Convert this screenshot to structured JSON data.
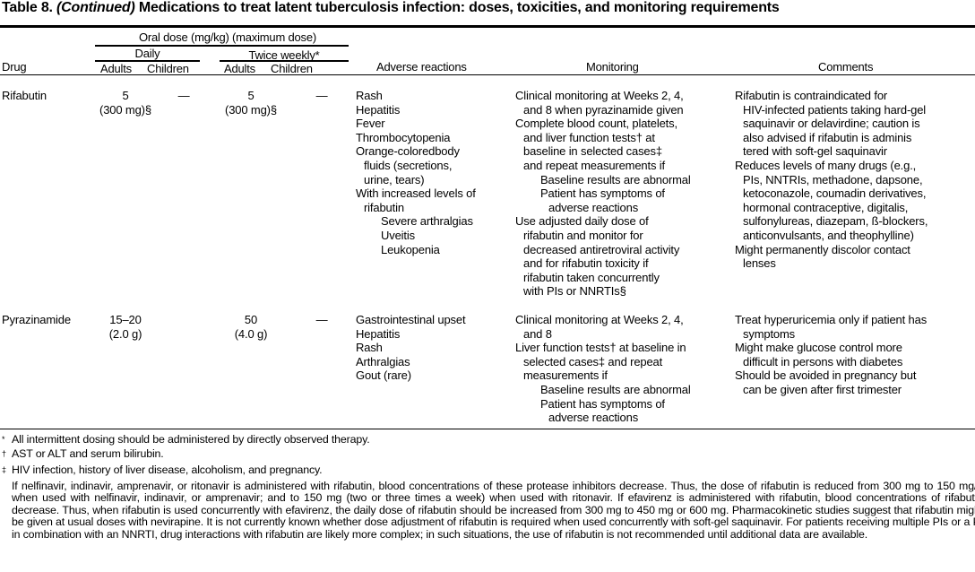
{
  "title": {
    "label": "Table 8.",
    "continued": "(Continued)",
    "text": "Medications to treat latent tuberculosis infection: doses, toxicities, and monitoring requirements"
  },
  "header": {
    "oral_dose": "Oral dose (mg/kg) (maximum dose)",
    "daily": "Daily",
    "twice_weekly": "Twice weekly*",
    "drug": "Drug",
    "adults": "Adults",
    "children": "Children",
    "adverse": "Adverse reactions",
    "monitoring": "Monitoring",
    "comments": "Comments"
  },
  "rows": [
    {
      "drug": "Rifabutin",
      "daily_adults": [
        "5",
        "(300 mg)§"
      ],
      "daily_children": "—",
      "tw_adults": [
        "5",
        "(300 mg)§"
      ],
      "tw_children": "—",
      "adverse": [
        [
          "Rash",
          0
        ],
        [
          "Hepatitis",
          0
        ],
        [
          "Fever",
          0
        ],
        [
          "Thrombocytopenia",
          0
        ],
        [
          "Orange-coloredbody",
          0
        ],
        [
          "fluids (secretions,",
          1
        ],
        [
          "urine, tears)",
          1
        ],
        [
          "With increased levels of",
          0
        ],
        [
          "rifabutin",
          1
        ],
        [
          "Severe arthralgias",
          2
        ],
        [
          "Uveitis",
          2
        ],
        [
          "Leukopenia",
          2
        ]
      ],
      "monitoring": [
        [
          "Clinical monitoring at Weeks 2, 4,",
          0
        ],
        [
          "and 8 when pyrazinamide given",
          1
        ],
        [
          "Complete blood count, platelets,",
          0
        ],
        [
          "and liver function tests† at",
          1
        ],
        [
          "baseline in selected cases‡",
          1
        ],
        [
          "and repeat measurements if",
          1
        ],
        [
          "Baseline results are abnormal",
          2
        ],
        [
          "Patient has symptoms of",
          2
        ],
        [
          "adverse reactions",
          3
        ],
        [
          "Use adjusted daily dose of",
          0
        ],
        [
          "rifabutin and monitor for",
          1
        ],
        [
          "decreased antiretroviral activity",
          1
        ],
        [
          "and for rifabutin toxicity if",
          1
        ],
        [
          "rifabutin taken concurrently",
          1
        ],
        [
          "with PIs or NNRTIs§",
          1
        ]
      ],
      "comments": [
        [
          "Rifabutin is contraindicated for",
          0
        ],
        [
          "HIV-infected patients taking hard-gel",
          1
        ],
        [
          "saquinavir or delavirdine; caution is",
          1
        ],
        [
          "also advised if rifabutin is adminis",
          1
        ],
        [
          "tered with soft-gel saquinavir",
          1
        ],
        [
          "Reduces levels of many drugs (e.g.,",
          0
        ],
        [
          "PIs, NNTRIs, methadone, dapsone,",
          1
        ],
        [
          "ketoconazole, coumadin derivatives,",
          1
        ],
        [
          "hormonal contraceptive, digitalis,",
          1
        ],
        [
          "sulfonylureas, diazepam, ß-blockers,",
          1
        ],
        [
          "anticonvulsants, and theophylline)",
          1
        ],
        [
          "Might permanently discolor contact",
          0
        ],
        [
          "lenses",
          1
        ]
      ]
    },
    {
      "drug": "Pyrazinamide",
      "daily_adults": [
        "15–20",
        "(2.0 g)"
      ],
      "daily_children": "",
      "tw_adults": [
        "50",
        "(4.0 g)"
      ],
      "tw_children": "—",
      "adverse": [
        [
          "Gastrointestinal upset",
          0
        ],
        [
          "Hepatitis",
          0
        ],
        [
          "Rash",
          0
        ],
        [
          "Arthralgias",
          0
        ],
        [
          "Gout (rare)",
          0
        ]
      ],
      "monitoring": [
        [
          "Clinical monitoring at Weeks 2, 4,",
          0
        ],
        [
          "and 8",
          1
        ],
        [
          "Liver function tests† at baseline in",
          0
        ],
        [
          "selected cases‡ and repeat",
          1
        ],
        [
          "measurements if",
          1
        ],
        [
          "Baseline results are abnormal",
          2
        ],
        [
          "Patient has symptoms of",
          2
        ],
        [
          "adverse reactions",
          3
        ]
      ],
      "comments": [
        [
          "Treat hyperuricemia only if patient has",
          0
        ],
        [
          "symptoms",
          1
        ],
        [
          "Might make glucose control more",
          0
        ],
        [
          "difficult in persons with diabetes",
          1
        ],
        [
          "Should be avoided in pregnancy but",
          0
        ],
        [
          "can be given after first trimester",
          1
        ]
      ]
    }
  ],
  "footnotes": [
    {
      "mark": "*",
      "text": "All intermittent dosing should be administered by directly observed therapy."
    },
    {
      "mark": "†",
      "text": "AST or ALT and serum bilirubin."
    },
    {
      "mark": "‡",
      "text": "HIV infection, history of liver disease, alcoholism, and pregnancy."
    },
    {
      "mark": "§",
      "text": "If nelfinavir, indinavir, amprenavir, or ritonavir is administered with rifabutin, blood concentrations of these protease inhibitors decrease. Thus, the dose of rifabutin is reduced from 300 mg to 150 mg/d when used with nelfinavir, indinavir, or amprenavir; and to 150 mg (two or three times a week) when used with ritonavir. If efavirenz is administered with rifabutin, blood concentrations of rifabutin decrease. Thus, when rifabutin is used concurrently with efavirenz, the daily dose of rifabutin should be increased from 300 mg to 450 mg or 600 mg. Pharmacokinetic studies suggest that rifabutin might be given at usual doses with nevirapine. It is not currently known whether dose adjustment of rifabutin is required when used concurrently with soft-gel saquinavir. For patients receiving multiple PIs or a PI in combination with an NNRTI, drug interactions with rifabutin are likely more complex; in such situations, the use of rifabutin is not recommended until additional data are available."
    }
  ]
}
